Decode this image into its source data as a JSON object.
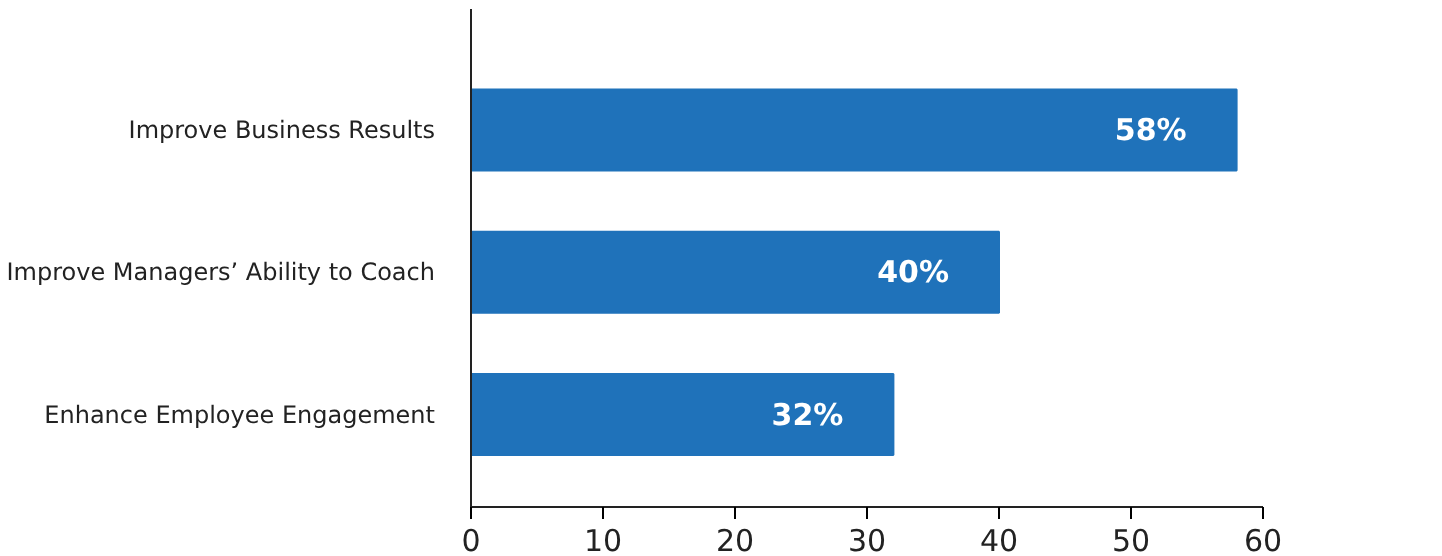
{
  "chart_data": {
    "type": "bar",
    "orientation": "horizontal",
    "categories": [
      "Improve Business Results",
      "Improve Managers’ Ability to Coach",
      "Enhance Employee Engagement"
    ],
    "values": [
      58,
      40,
      32
    ],
    "value_labels": [
      "58%",
      "40%",
      "32%"
    ],
    "color": "#1f72ba",
    "xlim": [
      0,
      60
    ],
    "xticks": [
      0,
      10,
      20,
      30,
      40,
      50,
      60
    ],
    "grid": false
  }
}
